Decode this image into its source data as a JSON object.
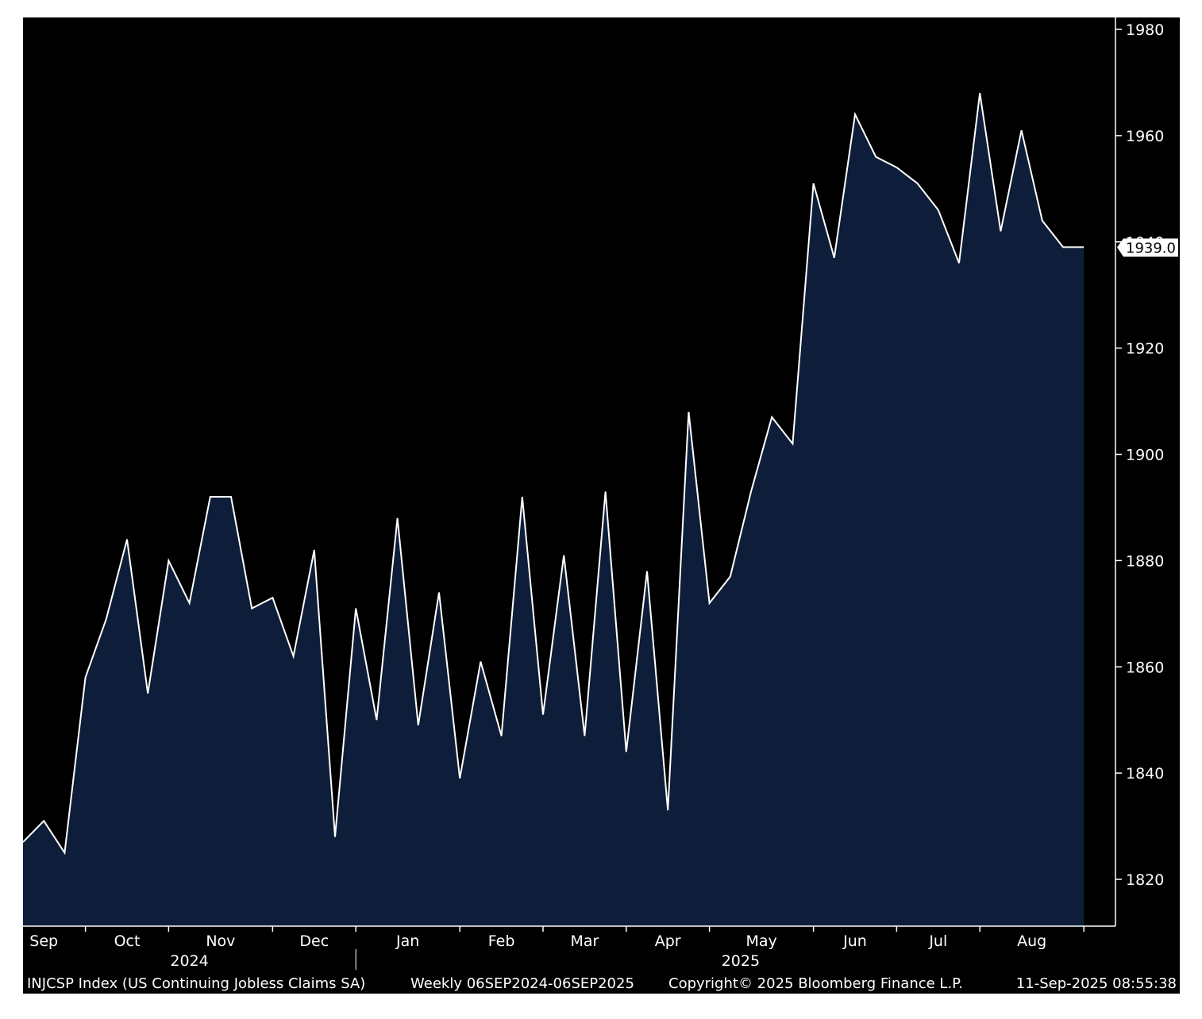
{
  "chart_data": {
    "type": "area",
    "title": "",
    "xlabel": "",
    "ylabel": "",
    "ylim": [
      1810,
      1982
    ],
    "y_ticks": [
      1820,
      1840,
      1860,
      1880,
      1900,
      1920,
      1940,
      1960,
      1980
    ],
    "grid": false,
    "legend": "none",
    "x_month_labels": [
      "Sep",
      "Oct",
      "Nov",
      "Dec",
      "Jan",
      "Feb",
      "Mar",
      "Apr",
      "May",
      "Jun",
      "Jul",
      "Aug"
    ],
    "x_month_label_weeks": [
      1,
      5,
      9.5,
      14,
      18.5,
      23,
      27,
      31,
      35.5,
      40,
      44,
      48.5
    ],
    "x_month_boundary_weeks": [
      3,
      7,
      12,
      16,
      21,
      25,
      29,
      33,
      38,
      42,
      46,
      51
    ],
    "year_labels": [
      "2024",
      "2025"
    ],
    "year_label_weeks": [
      8,
      34.5
    ],
    "year_boundary_week": 16,
    "series": [
      {
        "values": [
          1827,
          1831,
          1825,
          1858,
          1869,
          1884,
          1855,
          1880,
          1872,
          1892,
          1892,
          1871,
          1873,
          1862,
          1882,
          1828,
          1871,
          1850,
          1888,
          1849,
          1874,
          1839,
          1861,
          1847,
          1892,
          1851,
          1881,
          1847,
          1893,
          1844,
          1878,
          1833,
          1908,
          1872,
          1877,
          1893,
          1907,
          1902,
          1951,
          1937,
          1964,
          1956,
          1954,
          1951,
          1946,
          1936,
          1968,
          1942,
          1961,
          1944,
          1939,
          1939
        ]
      }
    ],
    "last_value_label": "1939.0",
    "colors": {
      "background": "#000000",
      "fill": "#0e1e3a",
      "line": "#ffffff",
      "last_label_bg": "#ffffff"
    }
  },
  "footer": {
    "index_label": "INJCSP Index (US Continuing Jobless Claims SA)",
    "frequency_range": "Weekly 06SEP2024-06SEP2025",
    "copyright": "Copyright© 2025 Bloomberg Finance L.P.",
    "timestamp": "11-Sep-2025 08:55:38"
  }
}
